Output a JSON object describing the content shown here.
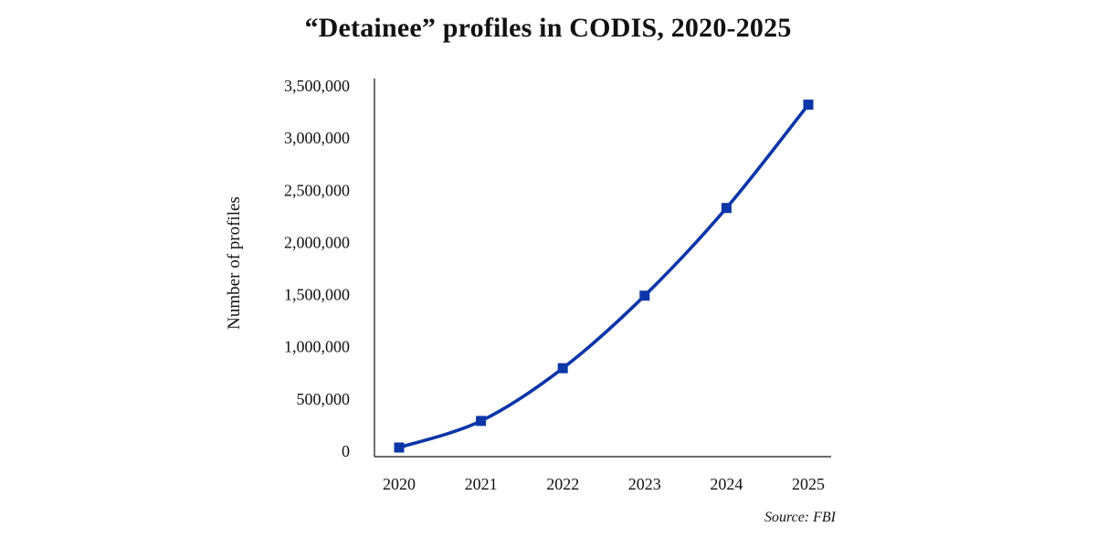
{
  "chart_data": {
    "type": "line",
    "title": "“Detainee” profiles in CODIS, 2020-2025",
    "xlabel": "",
    "ylabel": "Number of profiles",
    "x": [
      "2020",
      "2021",
      "2022",
      "2023",
      "2024",
      "2025"
    ],
    "series": [
      {
        "values": [
          35000,
          290000,
          795000,
          1490000,
          2330000,
          3320000
        ]
      }
    ],
    "ylim": [
      0,
      3500000
    ],
    "yticks": [
      "0",
      "500,000",
      "1,000,000",
      "1,500,000",
      "2,000,000",
      "2,500,000",
      "3,000,000",
      "3,500,000"
    ],
    "ytick_values": [
      0,
      500000,
      1000000,
      1500000,
      2000000,
      2500000,
      3000000,
      3500000
    ],
    "grid": false,
    "legend": "none",
    "marker": "square",
    "line_style": "smooth",
    "colors": {
      "series": "#0a36a8",
      "axis": "#111111"
    },
    "source": "Source: FBI"
  }
}
